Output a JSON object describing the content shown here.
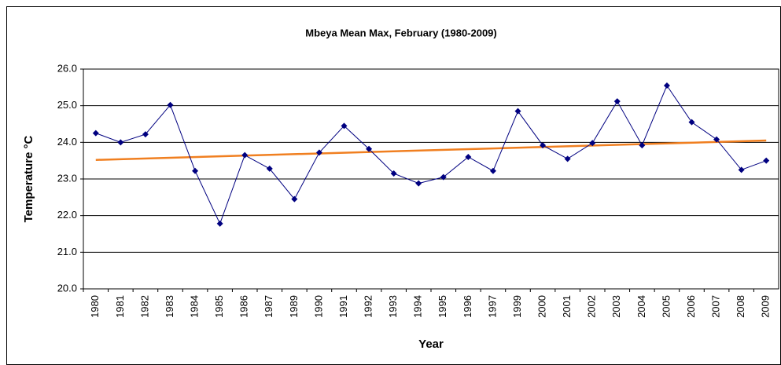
{
  "chart_data": {
    "type": "line",
    "title": "Mbeya Mean Max, February (1980-2009)",
    "x_label": "Year",
    "y_label": "Temperature °C",
    "categories": [
      "1980",
      "1981",
      "1982",
      "1983",
      "1984",
      "1985",
      "1986",
      "1987",
      "1989",
      "1990",
      "1991",
      "1992",
      "1993",
      "1994",
      "1995",
      "1996",
      "1997",
      "1999",
      "2000",
      "2001",
      "2002",
      "2003",
      "2004",
      "2005",
      "2006",
      "2007",
      "2008",
      "2009"
    ],
    "values": [
      24.25,
      24.0,
      24.22,
      25.02,
      23.22,
      21.78,
      23.65,
      23.28,
      22.45,
      23.72,
      24.45,
      23.82,
      23.15,
      22.88,
      23.05,
      23.6,
      23.22,
      24.85,
      23.92,
      23.55,
      23.98,
      25.12,
      23.92,
      25.55,
      24.55,
      24.08,
      23.25,
      23.5
    ],
    "color": "#000080",
    "trend": {
      "color": "#f07f20",
      "values": [
        23.52,
        24.05
      ]
    },
    "ylim": [
      20,
      26
    ],
    "yticks": [
      {
        "value": 20,
        "label": "20.0"
      },
      {
        "value": 21,
        "label": "21.0"
      },
      {
        "value": 22,
        "label": "22.0"
      },
      {
        "value": 23,
        "label": "23.0"
      },
      {
        "value": 24,
        "label": "24.0"
      },
      {
        "value": 25,
        "label": "25.0"
      },
      {
        "value": 26,
        "label": "26.0"
      }
    ],
    "grid": true
  }
}
